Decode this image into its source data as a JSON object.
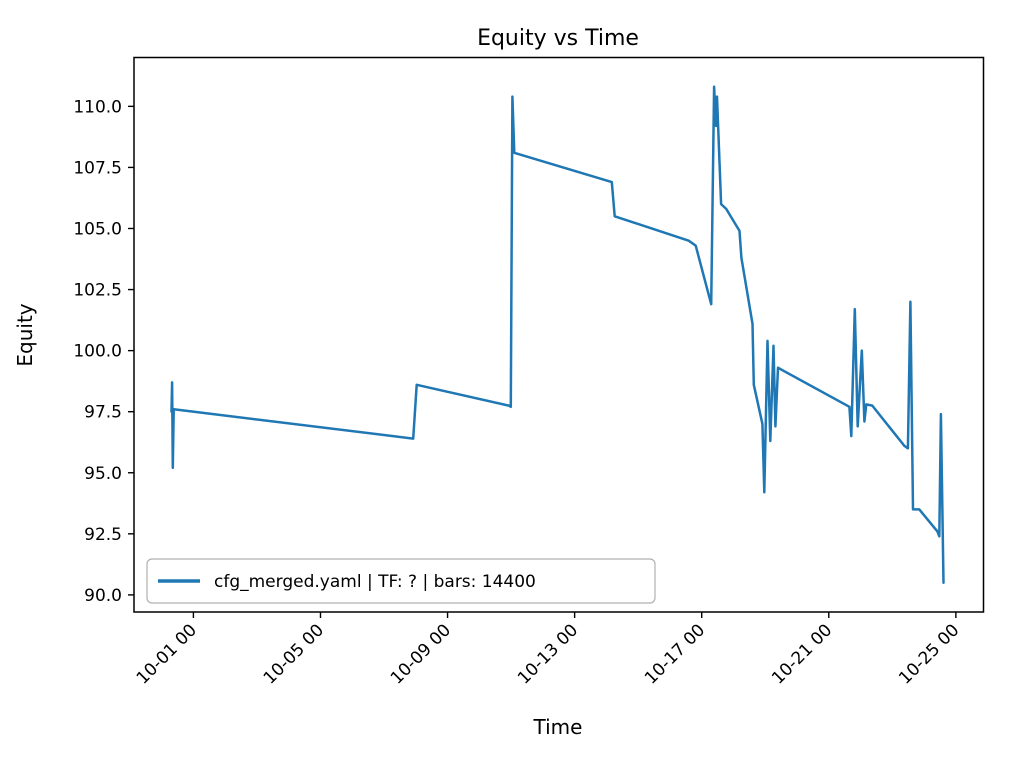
{
  "figure": {
    "background": "#ffffff",
    "spine_color": "#000000"
  },
  "chart_data": {
    "type": "line",
    "title": "Equity vs Time",
    "xlabel": "Time",
    "ylabel": "Equity",
    "grid": false,
    "legend_position": "lower left",
    "xlim": [
      -0.87,
      25.87
    ],
    "ylim": [
      89.3,
      112.0
    ],
    "x_ticks": [
      {
        "value": 1,
        "label": "10-01 00"
      },
      {
        "value": 5,
        "label": "10-05 00"
      },
      {
        "value": 9,
        "label": "10-09 00"
      },
      {
        "value": 13,
        "label": "10-13 00"
      },
      {
        "value": 17,
        "label": "10-17 00"
      },
      {
        "value": 21,
        "label": "10-21 00"
      },
      {
        "value": 25,
        "label": "10-25 00"
      }
    ],
    "y_ticks": [
      {
        "value": 90.0,
        "label": "90.0"
      },
      {
        "value": 92.5,
        "label": "92.5"
      },
      {
        "value": 95.0,
        "label": "95.0"
      },
      {
        "value": 97.5,
        "label": "97.5"
      },
      {
        "value": 100.0,
        "label": "100.0"
      },
      {
        "value": 102.5,
        "label": "102.5"
      },
      {
        "value": 105.0,
        "label": "105.0"
      },
      {
        "value": 107.5,
        "label": "107.5"
      },
      {
        "value": 110.0,
        "label": "110.0"
      }
    ],
    "series": [
      {
        "name": "cfg_merged.yaml | TF: ? | bars: 14400",
        "color": "#1f77b4",
        "points": [
          [
            0.31,
            97.5
          ],
          [
            0.33,
            98.7
          ],
          [
            0.35,
            95.2
          ],
          [
            0.38,
            97.6
          ],
          [
            7.92,
            96.4
          ],
          [
            8.03,
            98.6
          ],
          [
            10.93,
            97.75
          ],
          [
            10.99,
            97.7
          ],
          [
            11.04,
            110.4
          ],
          [
            11.1,
            108.1
          ],
          [
            14.17,
            106.9
          ],
          [
            14.26,
            105.5
          ],
          [
            16.59,
            104.5
          ],
          [
            16.81,
            104.3
          ],
          [
            17.3,
            101.9
          ],
          [
            17.39,
            110.8
          ],
          [
            17.45,
            109.2
          ],
          [
            17.48,
            110.4
          ],
          [
            17.61,
            106.0
          ],
          [
            17.77,
            105.8
          ],
          [
            18.19,
            104.9
          ],
          [
            18.25,
            103.8
          ],
          [
            18.6,
            101.1
          ],
          [
            18.64,
            98.6
          ],
          [
            18.91,
            97.0
          ],
          [
            18.97,
            94.2
          ],
          [
            19.07,
            100.4
          ],
          [
            19.16,
            96.3
          ],
          [
            19.26,
            100.2
          ],
          [
            19.32,
            96.9
          ],
          [
            19.4,
            99.3
          ],
          [
            19.54,
            99.2
          ],
          [
            21.65,
            97.7
          ],
          [
            21.71,
            96.5
          ],
          [
            21.82,
            101.7
          ],
          [
            21.91,
            96.9
          ],
          [
            22.04,
            100.0
          ],
          [
            22.12,
            97.1
          ],
          [
            22.18,
            97.8
          ],
          [
            22.37,
            97.75
          ],
          [
            23.38,
            96.1
          ],
          [
            23.49,
            96.0
          ],
          [
            23.57,
            102.0
          ],
          [
            23.65,
            93.5
          ],
          [
            23.85,
            93.5
          ],
          [
            24.42,
            92.6
          ],
          [
            24.48,
            92.4
          ],
          [
            24.53,
            97.4
          ],
          [
            24.61,
            90.5
          ]
        ]
      }
    ]
  }
}
